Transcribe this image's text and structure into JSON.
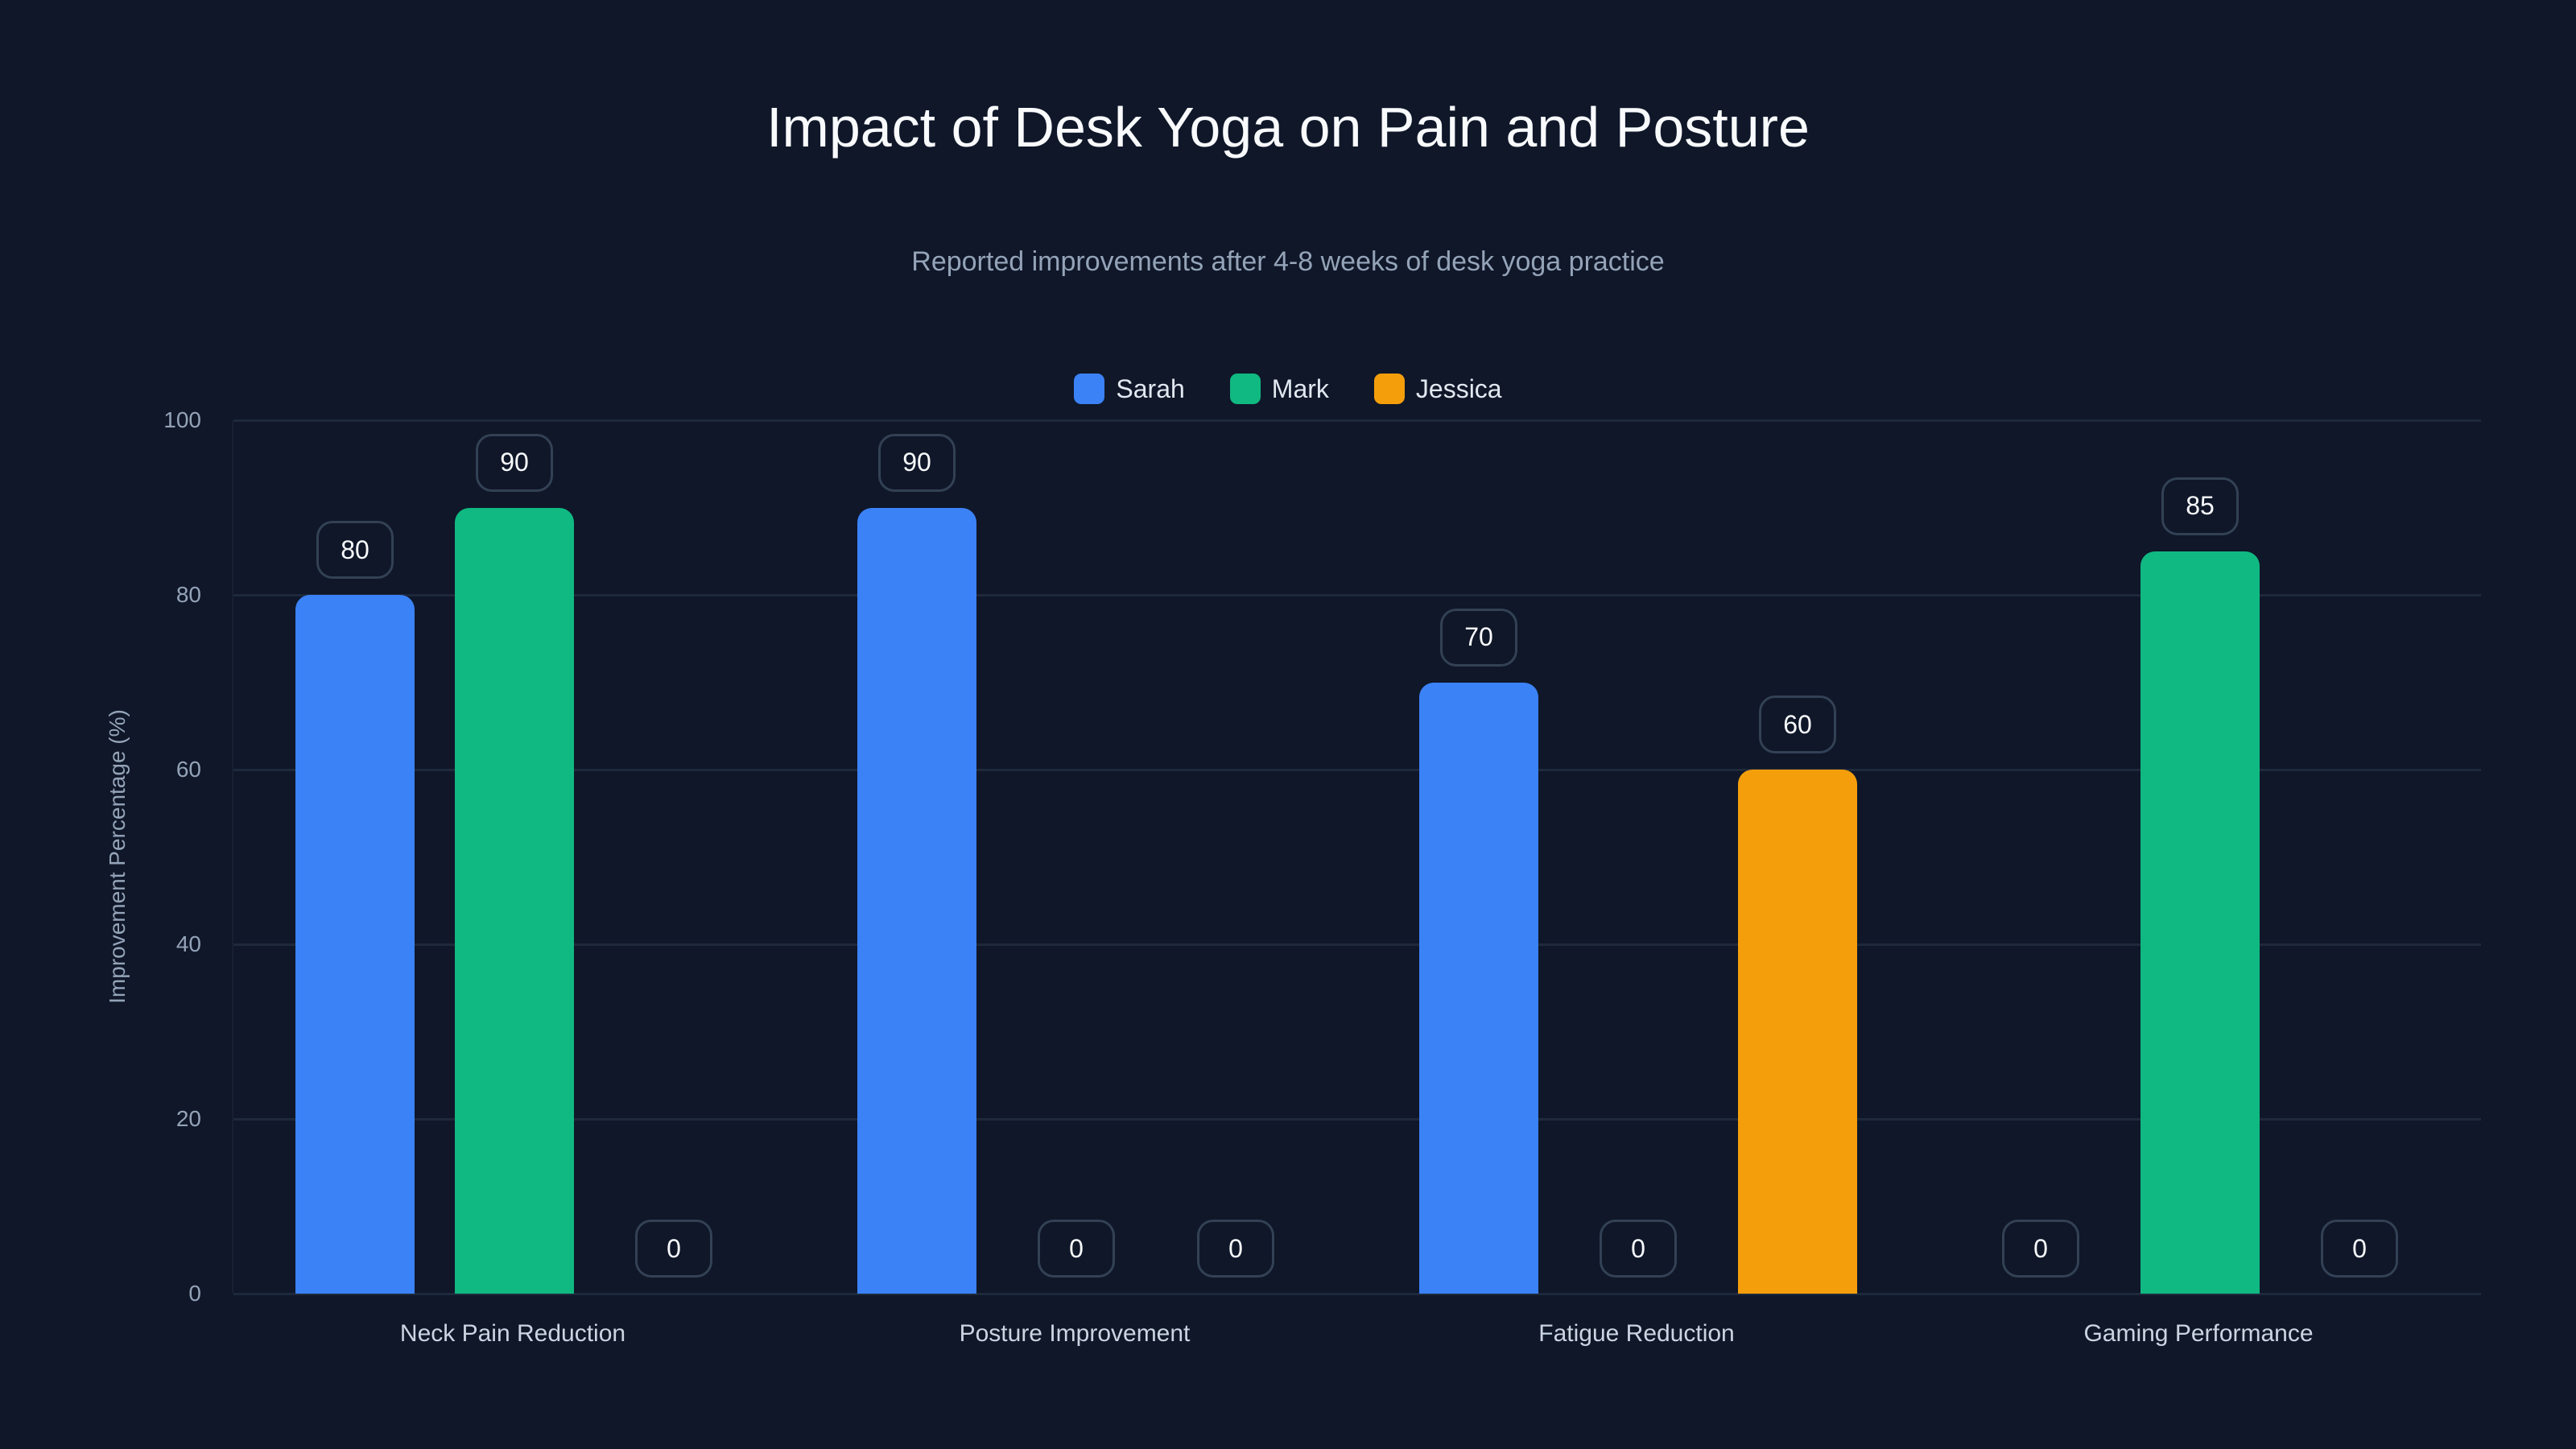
{
  "title": "Impact of Desk Yoga on Pain and Posture",
  "subtitle": "Reported improvements after 4-8 weeks of desk yoga practice",
  "legend": [
    {
      "label": "Sarah",
      "color": "#3b82f6"
    },
    {
      "label": "Mark",
      "color": "#10b981"
    },
    {
      "label": "Jessica",
      "color": "#f59e0b"
    }
  ],
  "yaxis": {
    "label": "Improvement Percentage (%)",
    "ticks": [
      "0",
      "20",
      "40",
      "60",
      "80",
      "100"
    ]
  },
  "xaxis": {
    "categories": [
      "Neck Pain Reduction",
      "Posture Improvement",
      "Fatigue Reduction",
      "Gaming Performance"
    ]
  },
  "chart_data": {
    "type": "bar",
    "title": "Impact of Desk Yoga on Pain and Posture",
    "subtitle": "Reported improvements after 4-8 weeks of desk yoga practice",
    "xlabel": "",
    "ylabel": "Improvement Percentage (%)",
    "ylim": [
      0,
      100
    ],
    "yticks": [
      0,
      20,
      40,
      60,
      80,
      100
    ],
    "grid": true,
    "legend_position": "top",
    "categories": [
      "Neck Pain Reduction",
      "Posture Improvement",
      "Fatigue Reduction",
      "Gaming Performance"
    ],
    "series": [
      {
        "name": "Sarah",
        "color": "#3b82f6",
        "values": [
          80,
          90,
          70,
          0
        ]
      },
      {
        "name": "Mark",
        "color": "#10b981",
        "values": [
          90,
          0,
          0,
          85
        ]
      },
      {
        "name": "Jessica",
        "color": "#f59e0b",
        "values": [
          0,
          0,
          60,
          0
        ]
      }
    ]
  }
}
